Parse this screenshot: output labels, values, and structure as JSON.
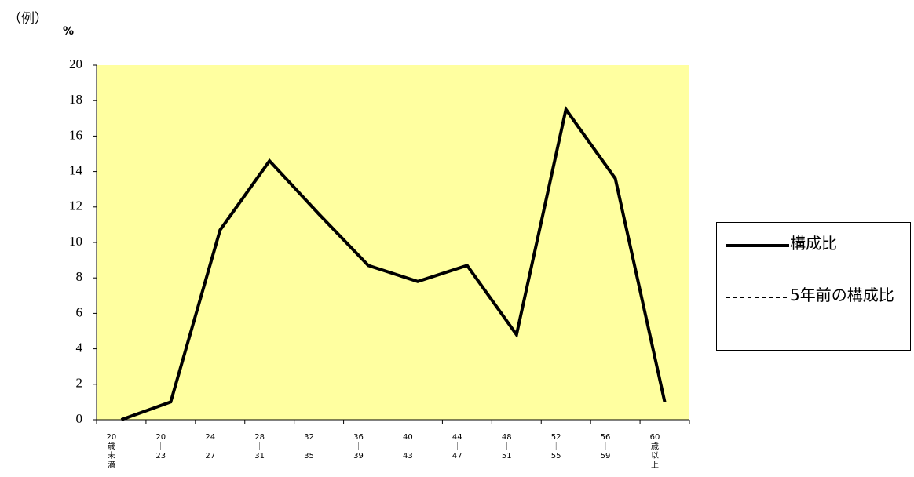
{
  "chart_data": {
    "type": "line",
    "caption": "（例）",
    "ylabel": "%",
    "categories": [
      "20歳未満",
      "20｜23",
      "24｜27",
      "28｜31",
      "32｜35",
      "36｜39",
      "40｜43",
      "44｜47",
      "48｜51",
      "52｜55",
      "56｜59",
      "60歳以上"
    ],
    "series": [
      {
        "name": "構成比",
        "color": "#000000",
        "style": "solid",
        "values": [
          0,
          1.0,
          10.7,
          14.6,
          11.6,
          8.7,
          7.8,
          8.7,
          4.8,
          17.5,
          13.6,
          1.0
        ]
      },
      {
        "name": "5年前の構成比",
        "color": "#000000",
        "style": "dotted",
        "values": [
          null,
          null,
          null,
          null,
          null,
          null,
          null,
          null,
          null,
          null,
          null,
          null
        ]
      }
    ],
    "ylim": [
      0,
      20
    ],
    "yticks": [
      0,
      2,
      4,
      6,
      8,
      10,
      12,
      14,
      16,
      18,
      20
    ],
    "background": "#ffffa0"
  }
}
